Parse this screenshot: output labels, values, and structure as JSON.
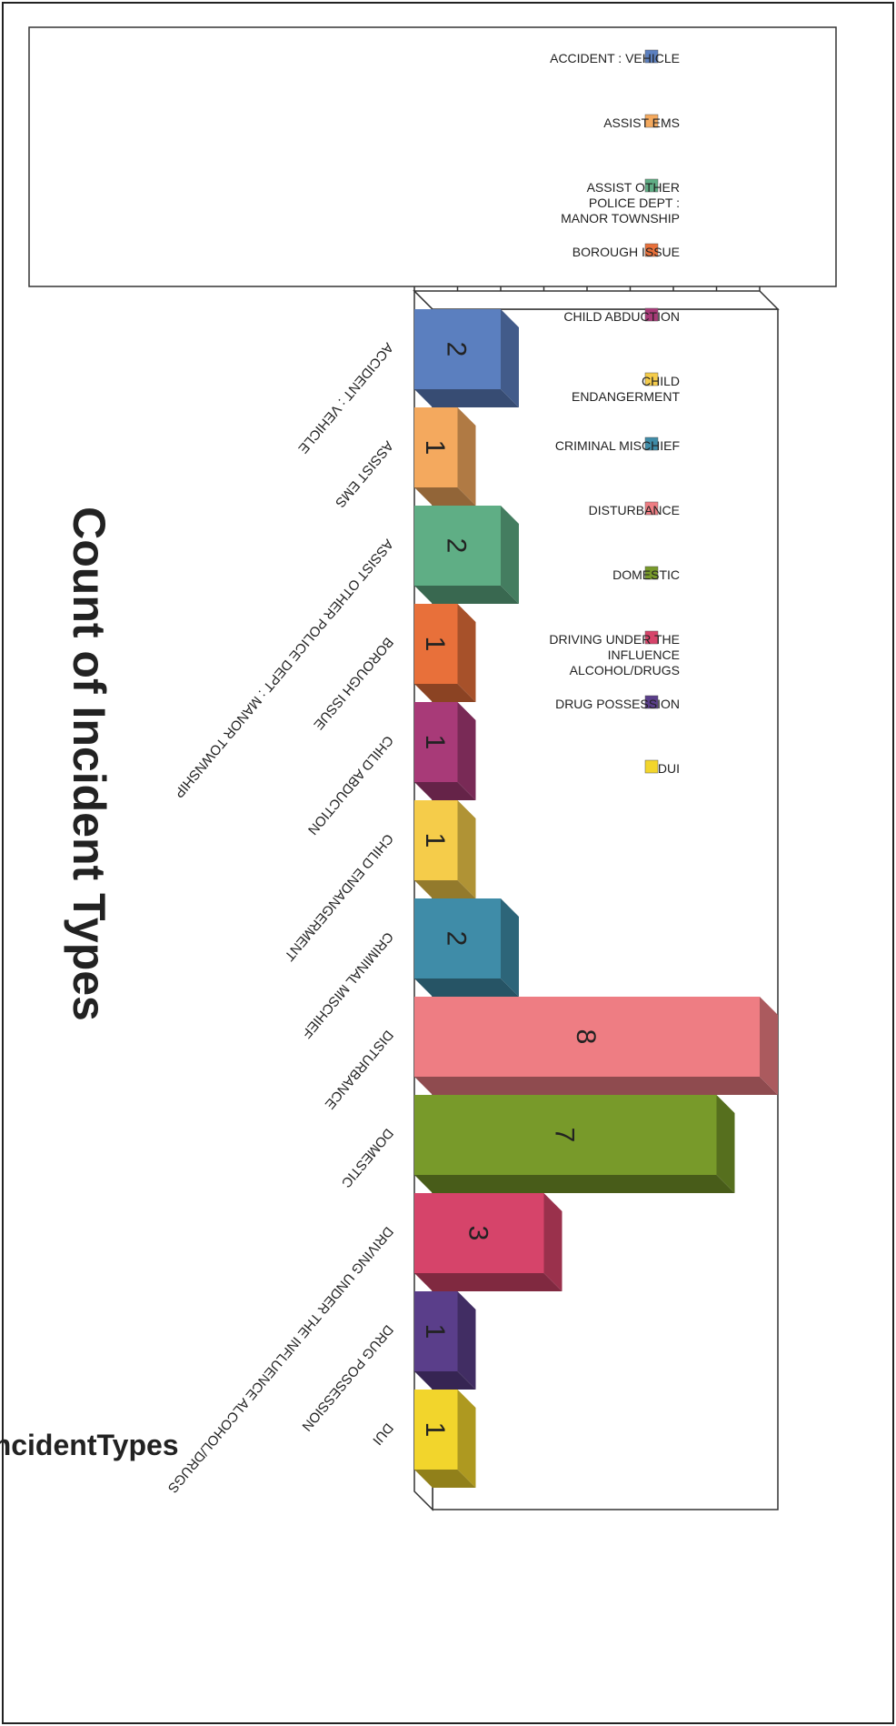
{
  "chart_data": {
    "type": "bar",
    "title": "Count of Incident Types",
    "ylabel": "Count of IncidentTypes",
    "ylim": [
      0,
      8
    ],
    "yticks": [
      0,
      1,
      2,
      3,
      4,
      5,
      6,
      7,
      8
    ],
    "orientation": "page rotated 90 degrees",
    "legend_position": "right",
    "categories": [
      "ACCIDENT : VEHICLE",
      "ASSIST EMS",
      "ASSIST OTHER POLICE DEPT : MANOR TOWNSHIP",
      "BOROUGH ISSUE",
      "CHILD ABDUCTION",
      "CHILD ENDANGERMENT",
      "CRIMINAL MISCHIEF",
      "DISTURBANCE",
      "DOMESTIC",
      "DRIVING UNDER THE INFLUENCE ALCOHOL/DRUGS",
      "DRUG POSSESSION",
      "DUI"
    ],
    "values": [
      2,
      1,
      2,
      1,
      1,
      1,
      2,
      8,
      7,
      3,
      1,
      1
    ],
    "data_labels": [
      "2",
      "1",
      "2",
      "1",
      "1",
      "1",
      "2",
      "8",
      "7",
      "3",
      "1",
      "1"
    ],
    "colors": [
      "#5b7fbf",
      "#f4a95e",
      "#5fae85",
      "#e8703a",
      "#a83a78",
      "#f5cc4a",
      "#3f8ca8",
      "#ee7d83",
      "#789a2a",
      "#d6446a",
      "#5a3e8a",
      "#f2d52c"
    ],
    "legend": [
      {
        "lines": [
          "ACCIDENT : VEHICLE"
        ]
      },
      {
        "lines": [
          "ASSIST EMS"
        ]
      },
      {
        "lines": [
          "ASSIST OTHER",
          "POLICE DEPT :",
          "MANOR TOWNSHIP"
        ]
      },
      {
        "lines": [
          "BOROUGH ISSUE"
        ]
      },
      {
        "lines": [
          "CHILD ABDUCTION"
        ]
      },
      {
        "lines": [
          "CHILD",
          "ENDANGERMENT"
        ]
      },
      {
        "lines": [
          "CRIMINAL MISCHIEF"
        ]
      },
      {
        "lines": [
          "DISTURBANCE"
        ]
      },
      {
        "lines": [
          "DOMESTIC"
        ]
      },
      {
        "lines": [
          "DRIVING UNDER THE",
          "INFLUENCE",
          "ALCOHOL/DRUGS"
        ]
      },
      {
        "lines": [
          "DRUG POSSESSION"
        ]
      },
      {
        "lines": [
          "DUI"
        ]
      }
    ]
  }
}
